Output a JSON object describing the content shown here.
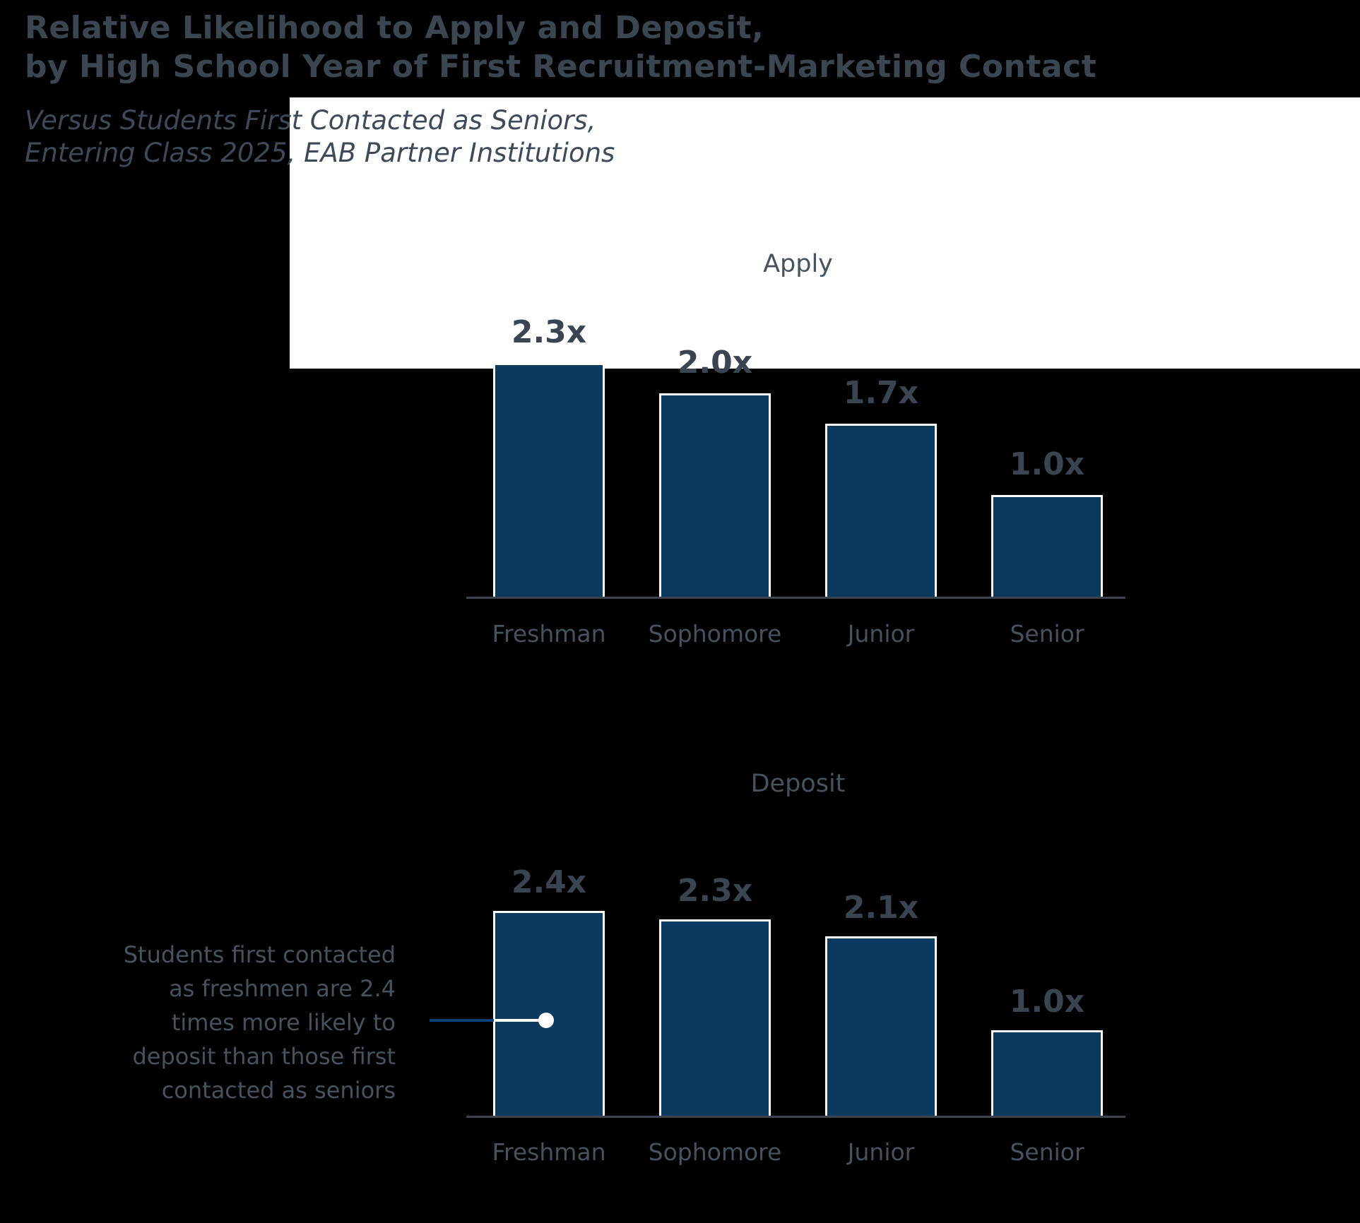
{
  "title": {
    "line1": "Relative Likelihood to Apply and Deposit,",
    "line2": "by High School Year of First Recruitment-Marketing Contact"
  },
  "subtitle": {
    "line1": "Versus Students First Contacted as Seniors,",
    "line2": "Entering Class 2025, EAB Partner Institutions"
  },
  "chart_data": [
    {
      "id": "apply",
      "type": "bar",
      "title": "Apply",
      "categories": [
        "Freshman",
        "Sophomore",
        "Junior",
        "Senior"
      ],
      "values": [
        2.3,
        2.0,
        1.7,
        1.0
      ],
      "value_labels": [
        "2.3x",
        "2.0x",
        "1.7x",
        "1.0x"
      ],
      "ylim": [
        0,
        2.6
      ],
      "grid": "off",
      "legend": "none",
      "bar_color": "#0c3a5e"
    },
    {
      "id": "deposit",
      "type": "bar",
      "title": "Deposit",
      "categories": [
        "Freshman",
        "Sophomore",
        "Junior",
        "Senior"
      ],
      "values": [
        2.4,
        2.3,
        2.1,
        1.0
      ],
      "value_labels": [
        "2.4x",
        "2.3x",
        "2.1x",
        "1.0x"
      ],
      "ylim": [
        0,
        2.6
      ],
      "grid": "off",
      "legend": "none",
      "bar_color": "#0c3a5e"
    }
  ],
  "annotation": {
    "text": "Students first contacted\nas freshmen are 2.4\ntimes more likely to\ndeposit than those first\ncontacted as seniors"
  },
  "colors": {
    "background": "#000000",
    "highlight_box": "#ffffff",
    "bar_navy": "#0c3a5e",
    "text_slate": "#3b4651",
    "axis": "#3a434e",
    "callout_blue": "#0f4273"
  }
}
